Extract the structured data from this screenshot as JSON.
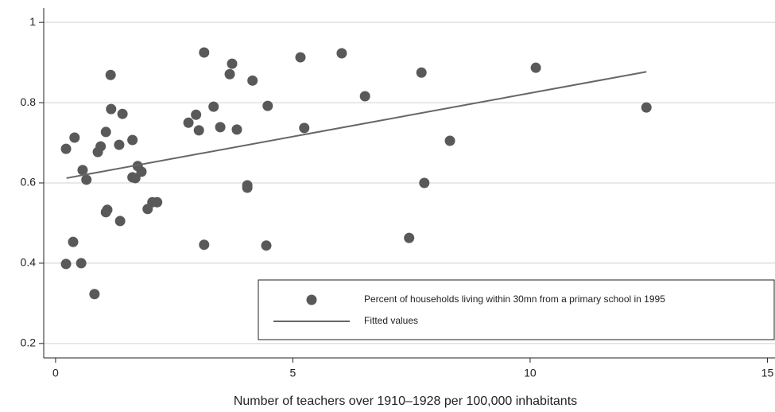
{
  "chart_data": {
    "type": "scatter",
    "x_label": "Number of teachers over 1910–1928 per 100,000 inhabitants",
    "xlim": [
      -0.25,
      15.16
    ],
    "ylim": [
      0.164,
      1.036
    ],
    "xticks": [
      0,
      5,
      10,
      15
    ],
    "yticks": [
      0.2,
      0.4,
      0.6,
      0.8,
      1
    ],
    "grid": true,
    "legend_position": "lower right",
    "series": [
      {
        "name": "Percent of households living within 30mn from a primary school in 1995",
        "color": "#595959",
        "type": "scatter",
        "x": [
          0.22,
          0.4,
          0.22,
          0.37,
          0.54,
          0.57,
          0.65,
          0.82,
          0.89,
          0.95,
          1.06,
          1.06,
          1.09,
          1.16,
          1.17,
          1.34,
          1.36,
          1.41,
          1.62,
          1.62,
          1.68,
          1.73,
          1.81,
          1.94,
          2.04,
          2.14,
          2.8,
          2.96,
          3.02,
          3.13,
          3.13,
          3.33,
          3.47,
          3.67,
          3.72,
          3.82,
          4.04,
          4.04,
          4.15,
          4.47,
          4.44,
          5.16,
          5.24,
          6.03,
          6.52,
          7.45,
          7.71,
          7.77,
          8.31,
          10.12,
          12.45
        ],
        "values": [
          0.685,
          0.713,
          0.398,
          0.453,
          0.4,
          0.632,
          0.608,
          0.323,
          0.677,
          0.691,
          0.727,
          0.527,
          0.533,
          0.869,
          0.784,
          0.695,
          0.505,
          0.772,
          0.707,
          0.614,
          0.612,
          0.642,
          0.628,
          0.535,
          0.552,
          0.552,
          0.75,
          0.77,
          0.731,
          0.925,
          0.446,
          0.79,
          0.739,
          0.871,
          0.897,
          0.733,
          0.594,
          0.588,
          0.855,
          0.792,
          0.444,
          0.913,
          0.737,
          0.923,
          0.816,
          0.463,
          0.875,
          0.6,
          0.705,
          0.887,
          0.788
        ]
      },
      {
        "name": "Fitted values",
        "color": "#666666",
        "type": "line",
        "x": [
          0.23,
          12.45
        ],
        "values": [
          0.612,
          0.877
        ]
      }
    ]
  }
}
